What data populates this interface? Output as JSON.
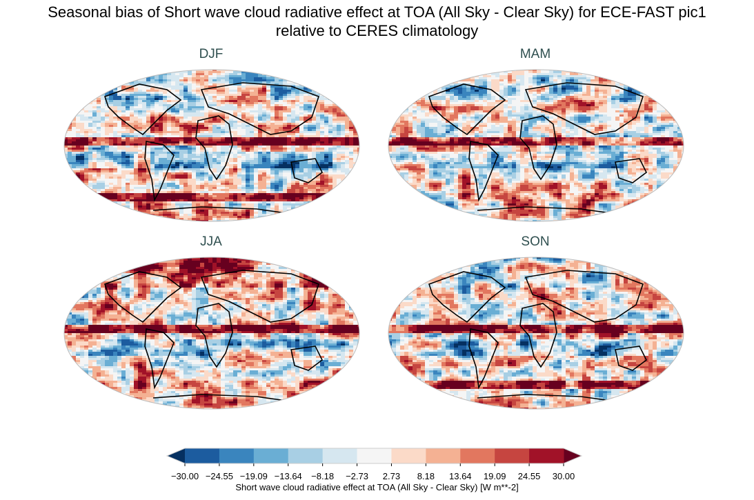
{
  "figure": {
    "title_line1": "Seasonal bias of Short wave cloud radiative effect at TOA (All Sky - Clear Sky) for ECE-FAST pic1",
    "title_line2": "relative to CERES climatology"
  },
  "panels": [
    {
      "title": "DJF"
    },
    {
      "title": "MAM"
    },
    {
      "title": "JJA"
    },
    {
      "title": "SON"
    }
  ],
  "colorbar": {
    "label": "Short wave cloud radiative effect at TOA (All Sky - Clear Sky) [W m**-2]",
    "ticks": [
      "−30.00",
      "−24.55",
      "−19.09",
      "−13.64",
      "−8.18",
      "−2.73",
      "2.73",
      "8.18",
      "13.64",
      "19.09",
      "24.55",
      "30.00"
    ],
    "extend": "both",
    "colors": [
      "#1c5c9f",
      "#3a85be",
      "#6aaed4",
      "#a8cfe4",
      "#d6e7f0",
      "#f5f5f5",
      "#fbdac8",
      "#f4b193",
      "#e2775f",
      "#c64540",
      "#a11228"
    ],
    "under_color": "#053061",
    "over_color": "#67001f"
  }
}
